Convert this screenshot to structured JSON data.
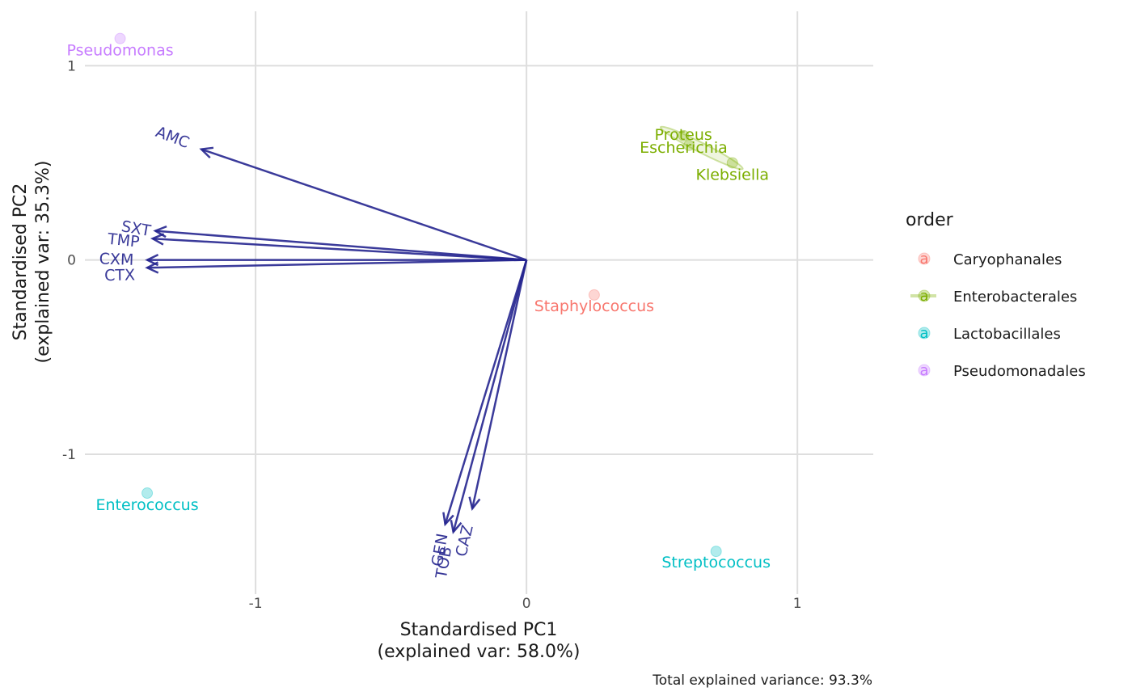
{
  "chart_data": {
    "type": "scatter",
    "xlabel_line1": "Standardised PC1",
    "xlabel_line2": "(explained var: 58.0%)",
    "ylabel_line1": "Standardised PC2",
    "ylabel_line2": "(explained var: 35.3%)",
    "caption": "Total explained variance: 93.3%",
    "xlim": [
      -1.63,
      1.28
    ],
    "ylim": [
      -1.72,
      1.28
    ],
    "x_ticks": [
      {
        "value": -1,
        "label": "-1"
      },
      {
        "value": 0,
        "label": "0"
      },
      {
        "value": 1,
        "label": "1"
      }
    ],
    "y_ticks": [
      {
        "value": -1,
        "label": "-1"
      },
      {
        "value": 0,
        "label": "0"
      },
      {
        "value": 1,
        "label": "1"
      }
    ],
    "grid": true,
    "legend": {
      "title": "order",
      "placement": "right",
      "entries": [
        {
          "name": "Caryophanales",
          "color": "#F8766D",
          "key": "a"
        },
        {
          "name": "Enterobacterales",
          "color": "#7CAE00",
          "key": "a"
        },
        {
          "name": "Lactobacillales",
          "color": "#00BFC4",
          "key": "a"
        },
        {
          "name": "Pseudomonadales",
          "color": "#C77CFF",
          "key": "a"
        }
      ]
    },
    "points": [
      {
        "label": "Pseudomonas",
        "order": "Pseudomonadales",
        "x": -1.5,
        "y": 1.14
      },
      {
        "label": "Escherichia",
        "order": "Enterobacterales",
        "x": 0.58,
        "y": 0.64
      },
      {
        "label": "Proteus",
        "order": "Enterobacterales",
        "x": 0.6,
        "y": 0.59
      },
      {
        "label": "Klebsiella",
        "order": "Enterobacterales",
        "x": 0.76,
        "y": 0.5
      },
      {
        "label": "Staphylococcus",
        "order": "Caryophanales",
        "x": 0.25,
        "y": -0.18
      },
      {
        "label": "Enterococcus",
        "order": "Lactobacillales",
        "x": -1.4,
        "y": -1.2
      },
      {
        "label": "Streptococcus",
        "order": "Lactobacillales",
        "x": 0.7,
        "y": -1.5
      }
    ],
    "arrows": [
      {
        "label": "AMC",
        "x": -1.2,
        "y": 0.57
      },
      {
        "label": "SXT",
        "x": -1.37,
        "y": 0.15
      },
      {
        "label": "TMP",
        "x": -1.38,
        "y": 0.11
      },
      {
        "label": "CXM",
        "x": -1.4,
        "y": 0.0
      },
      {
        "label": "CTX",
        "x": -1.4,
        "y": -0.04
      },
      {
        "label": "GEN",
        "x": -0.3,
        "y": -1.36
      },
      {
        "label": "TOB",
        "x": -0.27,
        "y": -1.4
      },
      {
        "label": "CAZ",
        "x": -0.2,
        "y": -1.28
      }
    ]
  }
}
